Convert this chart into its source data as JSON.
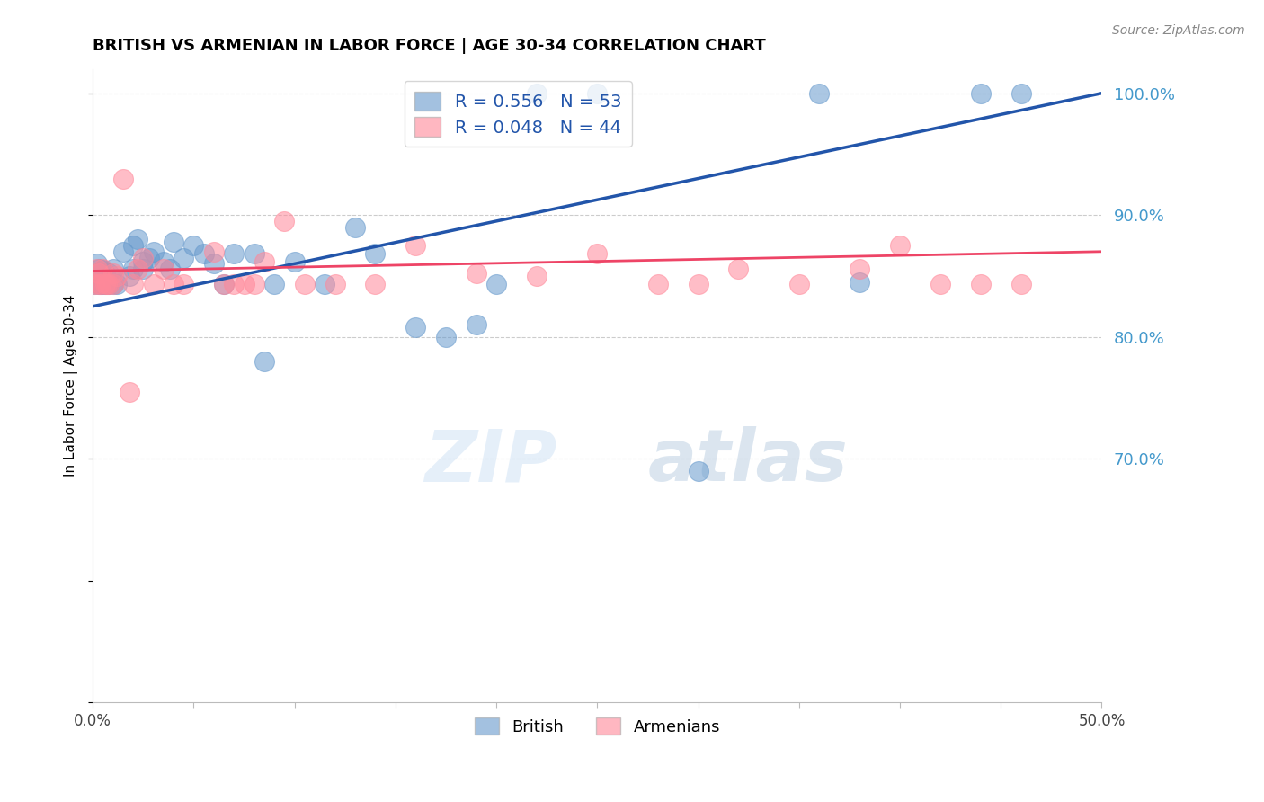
{
  "title": "BRITISH VS ARMENIAN IN LABOR FORCE | AGE 30-34 CORRELATION CHART",
  "source": "Source: ZipAtlas.com",
  "ylabel": "In Labor Force | Age 30-34",
  "xlim": [
    0.0,
    0.5
  ],
  "ylim": [
    0.5,
    1.02
  ],
  "xticks": [
    0.0,
    0.05,
    0.1,
    0.15,
    0.2,
    0.25,
    0.3,
    0.35,
    0.4,
    0.45,
    0.5
  ],
  "yticks": [
    0.5,
    0.6,
    0.7,
    0.8,
    0.9,
    1.0
  ],
  "ytick_labels": [
    "",
    "",
    "70.0%",
    "80.0%",
    "90.0%",
    "100.0%"
  ],
  "blue_R": 0.556,
  "blue_N": 53,
  "pink_R": 0.048,
  "pink_N": 44,
  "legend_label_blue": "British",
  "legend_label_pink": "Armenians",
  "watermark": "ZIPatlas",
  "blue_color": "#6699CC",
  "pink_color": "#FF8899",
  "blue_line_color": "#2255AA",
  "pink_line_color": "#EE4466",
  "blue_points_x": [
    0.001,
    0.002,
    0.002,
    0.003,
    0.003,
    0.004,
    0.004,
    0.005,
    0.005,
    0.006,
    0.006,
    0.007,
    0.008,
    0.008,
    0.01,
    0.01,
    0.012,
    0.015,
    0.018,
    0.02,
    0.02,
    0.022,
    0.025,
    0.025,
    0.028,
    0.03,
    0.035,
    0.038,
    0.04,
    0.045,
    0.05,
    0.055,
    0.06,
    0.065,
    0.07,
    0.08,
    0.085,
    0.09,
    0.1,
    0.115,
    0.13,
    0.14,
    0.16,
    0.175,
    0.19,
    0.2,
    0.22,
    0.25,
    0.3,
    0.36,
    0.38,
    0.44,
    0.46
  ],
  "blue_points_y": [
    0.843,
    0.852,
    0.86,
    0.843,
    0.856,
    0.843,
    0.848,
    0.843,
    0.855,
    0.843,
    0.852,
    0.843,
    0.843,
    0.852,
    0.843,
    0.856,
    0.843,
    0.87,
    0.85,
    0.875,
    0.856,
    0.88,
    0.862,
    0.856,
    0.865,
    0.87,
    0.862,
    0.856,
    0.878,
    0.865,
    0.875,
    0.868,
    0.86,
    0.843,
    0.868,
    0.868,
    0.78,
    0.843,
    0.862,
    0.843,
    0.89,
    0.868,
    0.808,
    0.8,
    0.81,
    0.843,
    1.0,
    1.0,
    0.69,
    1.0,
    0.845,
    1.0,
    1.0
  ],
  "pink_points_x": [
    0.001,
    0.002,
    0.003,
    0.003,
    0.004,
    0.005,
    0.006,
    0.007,
    0.008,
    0.01,
    0.01,
    0.012,
    0.015,
    0.018,
    0.02,
    0.022,
    0.025,
    0.03,
    0.035,
    0.04,
    0.045,
    0.06,
    0.065,
    0.07,
    0.075,
    0.08,
    0.085,
    0.095,
    0.105,
    0.12,
    0.14,
    0.16,
    0.19,
    0.22,
    0.25,
    0.28,
    0.3,
    0.32,
    0.35,
    0.38,
    0.4,
    0.42,
    0.44,
    0.46
  ],
  "pink_points_y": [
    0.843,
    0.856,
    0.843,
    0.852,
    0.843,
    0.856,
    0.843,
    0.843,
    0.843,
    0.843,
    0.852,
    0.85,
    0.93,
    0.755,
    0.843,
    0.856,
    0.865,
    0.843,
    0.856,
    0.843,
    0.843,
    0.87,
    0.843,
    0.843,
    0.843,
    0.843,
    0.862,
    0.895,
    0.843,
    0.843,
    0.843,
    0.875,
    0.852,
    0.85,
    0.868,
    0.843,
    0.843,
    0.856,
    0.843,
    0.856,
    0.875,
    0.843,
    0.843,
    0.843
  ],
  "blue_line_x": [
    0.0,
    0.5
  ],
  "blue_line_y": [
    0.825,
    1.0
  ],
  "pink_line_x": [
    0.0,
    0.5
  ],
  "pink_line_y": [
    0.854,
    0.87
  ]
}
